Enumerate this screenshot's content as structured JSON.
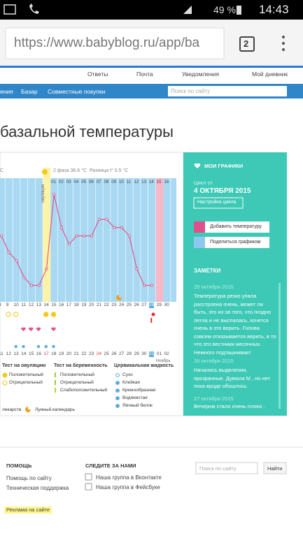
{
  "status_bar": {
    "battery": "49 %",
    "time": "14:43"
  },
  "browser": {
    "url": "https://www.babyblog.ru/app/ba",
    "tabs": "2"
  },
  "top_nav": [
    "Ответы",
    "Почта",
    "Уведомления",
    "Мой дневник"
  ],
  "main_nav": [
    "ения",
    "Базар",
    "Совместные покупки"
  ],
  "search_placeholder": "Поиск по сайту",
  "heading": "базальной температуры",
  "chart": {
    "unit_cut": "C",
    "phase2": "2 фаза 36.6 °C",
    "difference": "Разница t° 0.5 °C",
    "ovulation": "овуляция",
    "phase_days": [
      "01",
      "02",
      "03",
      "04",
      "05",
      "06",
      "07",
      "08",
      "09",
      "10",
      "11",
      "12",
      "13",
      "14",
      "15",
      "16"
    ],
    "dates": [
      "8",
      "9",
      "10",
      "11",
      "12",
      "13",
      "14",
      "15",
      "16",
      "17",
      "18",
      "19",
      "20",
      "21",
      "22",
      "23",
      "24",
      "25",
      "26",
      "27",
      "28",
      "29",
      "30"
    ],
    "bottom_dates": [
      "11",
      "12",
      "13",
      "14",
      "15",
      "16",
      "17",
      "18",
      "19",
      "20",
      "21",
      "22",
      "23",
      "24",
      "25",
      "26",
      "27",
      "28",
      "29",
      "30",
      "31",
      "01",
      "02"
    ],
    "month": "Ноябрь",
    "ylim": [
      36.0,
      37.5
    ],
    "temperatures": [
      36.8,
      36.6,
      36.5,
      36.3,
      36.2,
      36.2,
      36.4,
      37.3,
      36.9,
      36.7,
      36.8,
      36.8,
      36.8,
      37.0,
      37.0,
      36.9,
      36.9,
      36.8,
      36.4,
      36.2,
      36.2
    ],
    "legend": {
      "ovulation_test": {
        "title": "Тест на овуляцию",
        "items": [
          "Положительный",
          "Отрицательный"
        ]
      },
      "pregnancy_test": {
        "title": "Тест на беременность",
        "items": [
          "Положительный",
          "Отрицательный",
          "Слабоположительный"
        ]
      },
      "cervical": {
        "title": "Цервикальная жидкость",
        "items": [
          "Сухо",
          "Клейкая",
          "Кремообразная",
          "Водянистая",
          "Яичный белок"
        ]
      },
      "medicine": "лекарств",
      "moon": "Лунный календарь"
    }
  },
  "sidebar": {
    "my_charts": "МОИ ГРАФИКИ",
    "cycle_from": "Цикл от",
    "cycle_date": "4 ОКТЯБРЯ 2015",
    "settings": "Настройка цикла",
    "add_temp": "Добавить температуру",
    "share": "Поделиться графиком",
    "notes_title": "ЗАМЕТКИ",
    "notes": [
      {
        "date": "29 октября 2015",
        "text": "Температура резко упала расстроена очень, может ли быть, это из-за того, что поздно легла и не выспалась, хочется очень в это верить. Голова совсем отказывается верить, в то что это вестники месячных. Немного подташнивает"
      },
      {
        "date": "28 октября 2015",
        "text": "Начались выделения, прозрачные. Думала М , но нет пока вроде обошлось"
      },
      {
        "date": "27 октября 2015",
        "text": "Вечером стало очень плохо ."
      }
    ]
  },
  "footer": {
    "help_title": "ПОМОЩЬ",
    "help_links": [
      "Помощь по сайту",
      "Техническая поддержка"
    ],
    "follow_title": "СЛЕДИТЕ ЗА НАМИ",
    "follow_links": [
      "Наша группа в Вконтакте",
      "Наша группа в Фейсбуке"
    ],
    "search_placeholder": "Поиск по сайту",
    "search_button": "Найти",
    "ads": "Реклама на сайте"
  }
}
